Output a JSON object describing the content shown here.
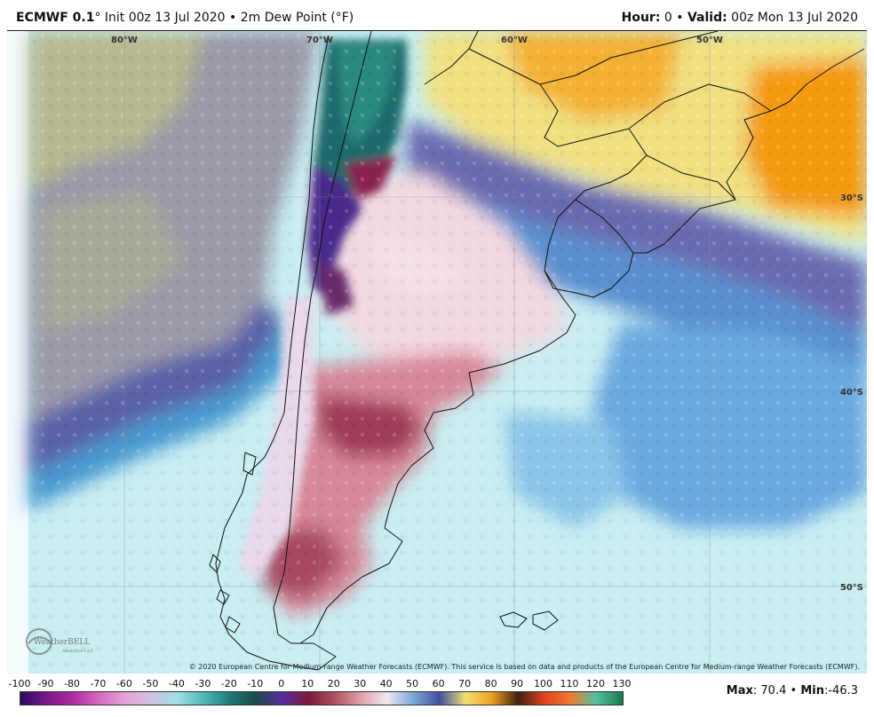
{
  "header": {
    "model": "ECMWF 0.1",
    "degree_mark": "°",
    "init_text": "Init 00z 13 Jul 2020",
    "bullet": "•",
    "field": "2m Dew Point (°F)",
    "hour_label": "Hour:",
    "hour_value": "0",
    "valid_label": "Valid:",
    "valid_value": "00z Mon 13 Jul 2020"
  },
  "map": {
    "longitude_labels": [
      "80°W",
      "70°W",
      "60°W",
      "50°W"
    ],
    "latitude_labels": [
      "30°S",
      "40°S",
      "50°S"
    ],
    "copyright": "© 2020 European Centre for Medium-range Weather Forecasts (ECMWF). This service is based on data and products of the European Centre for Medium-range Weather Forecasts (ECMWF).",
    "logo_text": "WeatherBELL",
    "logo_sub": "Analytics LLC"
  },
  "colorbar": {
    "ticks": [
      "-100",
      "-90",
      "-80",
      "-70",
      "-60",
      "-50",
      "-40",
      "-30",
      "-20",
      "-10",
      "0",
      "10",
      "20",
      "30",
      "40",
      "50",
      "60",
      "70",
      "80",
      "90",
      "100",
      "110",
      "120",
      "130"
    ],
    "colors": [
      "#2a0a5e",
      "#7a1a8a",
      "#b02aa0",
      "#d46ac0",
      "#e6a2d8",
      "#cfc2e0",
      "#9fdfe6",
      "#4fb8b8",
      "#1d7a7a",
      "#1a4a4a",
      "#5a2aa0",
      "#7a1a3a",
      "#b05060",
      "#e0a0a8",
      "#f0e8f0",
      "#7aa8d8",
      "#4050a0",
      "#f0e070",
      "#f0a020",
      "#402010",
      "#e04020",
      "#f07a30",
      "#50c0a0",
      "#1a7a4a"
    ]
  },
  "stats": {
    "max_label": "Max",
    "max_value": "70.4",
    "min_label": "Min",
    "min_value": "-46.3"
  }
}
